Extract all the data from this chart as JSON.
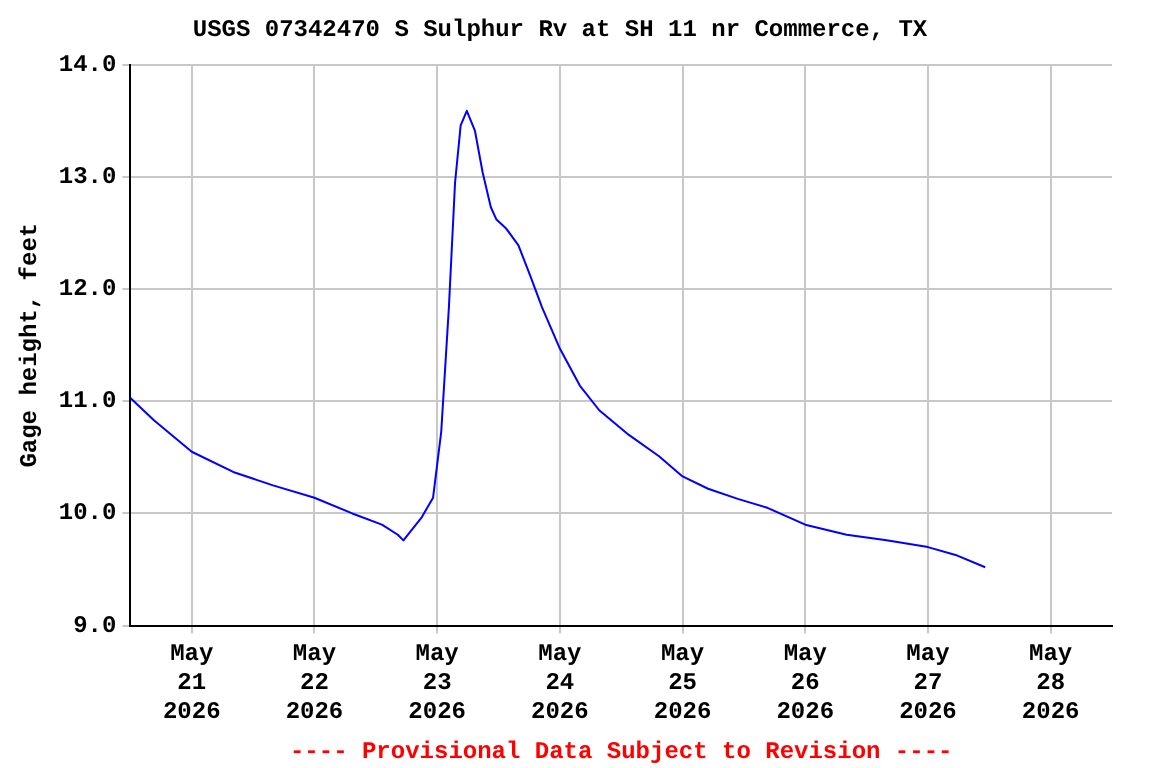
{
  "chart_data": {
    "type": "line",
    "title": "USGS 07342470 S Sulphur Rv at SH 11 nr Commerce, TX",
    "ylabel": "Gage height, feet",
    "annotations": [
      "---- Provisional Data Subject to Revision ----"
    ],
    "x": [
      "2026-05-20T12:00",
      "2026-05-20T16:36",
      "2026-05-21T00:00",
      "2026-05-21T08:06",
      "2026-05-21T15:54",
      "2026-05-22T00:00",
      "2026-05-22T07:24",
      "2026-05-22T13:12",
      "2026-05-22T16:18",
      "2026-05-22T17:24",
      "2026-05-22T20:54",
      "2026-05-22T23:12",
      "2026-05-23T00:48",
      "2026-05-23T02:18",
      "2026-05-23T03:30",
      "2026-05-23T04:36",
      "2026-05-23T05:48",
      "2026-05-23T07:24",
      "2026-05-23T08:54",
      "2026-05-23T10:30",
      "2026-05-23T11:36",
      "2026-05-23T13:30",
      "2026-05-23T15:54",
      "2026-05-23T18:12",
      "2026-05-23T20:30",
      "2026-05-24T00:00",
      "2026-05-24T03:54",
      "2026-05-24T07:42",
      "2026-05-24T13:30",
      "2026-05-24T19:24",
      "2026-05-25T00:00",
      "2026-05-25T05:00",
      "2026-05-25T10:48",
      "2026-05-25T16:36",
      "2026-05-26T00:00",
      "2026-05-26T08:06",
      "2026-05-26T15:54",
      "2026-05-27T00:00",
      "2026-05-27T05:24",
      "2026-05-27T11:12"
    ],
    "series": [
      {
        "color": "#0000ff",
        "values": [
          11.03,
          10.83,
          10.55,
          10.37,
          10.25,
          10.14,
          10.0,
          9.9,
          9.81,
          9.76,
          9.96,
          10.14,
          10.73,
          11.84,
          12.95,
          13.46,
          13.59,
          13.41,
          13.04,
          12.73,
          12.62,
          12.54,
          12.39,
          12.12,
          11.84,
          11.47,
          11.14,
          10.92,
          10.7,
          10.51,
          10.33,
          10.22,
          10.13,
          10.05,
          9.9,
          9.81,
          9.76,
          9.7,
          9.63,
          9.52
        ]
      }
    ],
    "xlim": [
      "2026-05-20T12:00",
      "2026-05-28T12:00"
    ],
    "xticks": [
      {
        "value": "2026-05-21",
        "label": "May 21 2026"
      },
      {
        "value": "2026-05-22",
        "label": "May 22 2026"
      },
      {
        "value": "2026-05-23",
        "label": "May 23 2026"
      },
      {
        "value": "2026-05-24",
        "label": "May 24 2026"
      },
      {
        "value": "2026-05-25",
        "label": "May 25 2026"
      },
      {
        "value": "2026-05-26",
        "label": "May 26 2026"
      },
      {
        "value": "2026-05-27",
        "label": "May 27 2026"
      },
      {
        "value": "2026-05-28",
        "label": "May 28 2026"
      }
    ],
    "ylim": [
      9,
      14
    ],
    "yticks": [
      {
        "value": 9,
        "label": "9.0"
      },
      {
        "value": 10,
        "label": "10.0"
      },
      {
        "value": 11,
        "label": "11.0"
      },
      {
        "value": 12,
        "label": "12.0"
      },
      {
        "value": 13,
        "label": "13.0"
      },
      {
        "value": 14,
        "label": "14.0"
      }
    ],
    "grid": true,
    "legend": false,
    "marker": "none",
    "line_style": "solid"
  }
}
